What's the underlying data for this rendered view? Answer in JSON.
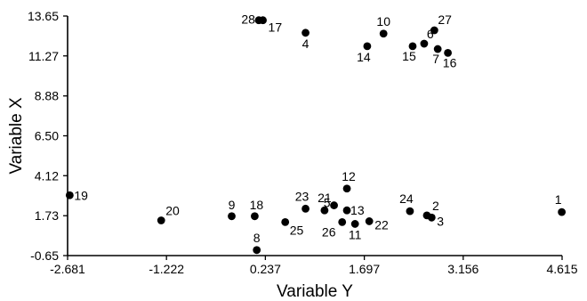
{
  "chart_data": {
    "type": "scatter",
    "xlabel": "Variable Y",
    "ylabel": "Variable X",
    "xlim": [
      -2.681,
      4.615
    ],
    "ylim": [
      -0.65,
      13.65
    ],
    "xticks": [
      "-2.681",
      "-1.222",
      "0.237",
      "1.697",
      "3.156",
      "4.615"
    ],
    "yticks": [
      "-0.65",
      "1.73",
      "4.12",
      "6.50",
      "8.88",
      "11.27",
      "13.65"
    ],
    "grid": false,
    "points": [
      {
        "label": "1",
        "x": 4.61,
        "y": 1.95
      },
      {
        "label": "2",
        "x": 2.62,
        "y": 1.75
      },
      {
        "label": "3",
        "x": 2.69,
        "y": 1.62
      },
      {
        "label": "4",
        "x": 0.83,
        "y": 12.65
      },
      {
        "label": "5",
        "x": 1.25,
        "y": 2.35
      },
      {
        "label": "6",
        "x": 2.58,
        "y": 12.0
      },
      {
        "label": "7",
        "x": 2.78,
        "y": 11.68
      },
      {
        "label": "8",
        "x": 0.11,
        "y": -0.32
      },
      {
        "label": "9",
        "x": -0.26,
        "y": 1.7
      },
      {
        "label": "10",
        "x": 1.98,
        "y": 12.6
      },
      {
        "label": "11",
        "x": 1.56,
        "y": 1.24
      },
      {
        "label": "12",
        "x": 1.44,
        "y": 3.35
      },
      {
        "label": "13",
        "x": 1.44,
        "y": 2.05
      },
      {
        "label": "14",
        "x": 1.74,
        "y": 11.85
      },
      {
        "label": "15",
        "x": 2.41,
        "y": 11.85
      },
      {
        "label": "16",
        "x": 2.93,
        "y": 11.45
      },
      {
        "label": "17",
        "x": 0.2,
        "y": 13.4
      },
      {
        "label": "18",
        "x": 0.08,
        "y": 1.7
      },
      {
        "label": "19",
        "x": -2.65,
        "y": 2.95
      },
      {
        "label": "20",
        "x": -1.3,
        "y": 1.45
      },
      {
        "label": "21",
        "x": 1.11,
        "y": 2.05
      },
      {
        "label": "22",
        "x": 1.77,
        "y": 1.4
      },
      {
        "label": "23",
        "x": 0.83,
        "y": 2.15
      },
      {
        "label": "24",
        "x": 2.37,
        "y": 2.0
      },
      {
        "label": "25",
        "x": 0.53,
        "y": 1.35
      },
      {
        "label": "26",
        "x": 1.37,
        "y": 1.35
      },
      {
        "label": "27",
        "x": 2.73,
        "y": 12.8
      },
      {
        "label": "28",
        "x": 0.14,
        "y": 13.4
      }
    ]
  }
}
